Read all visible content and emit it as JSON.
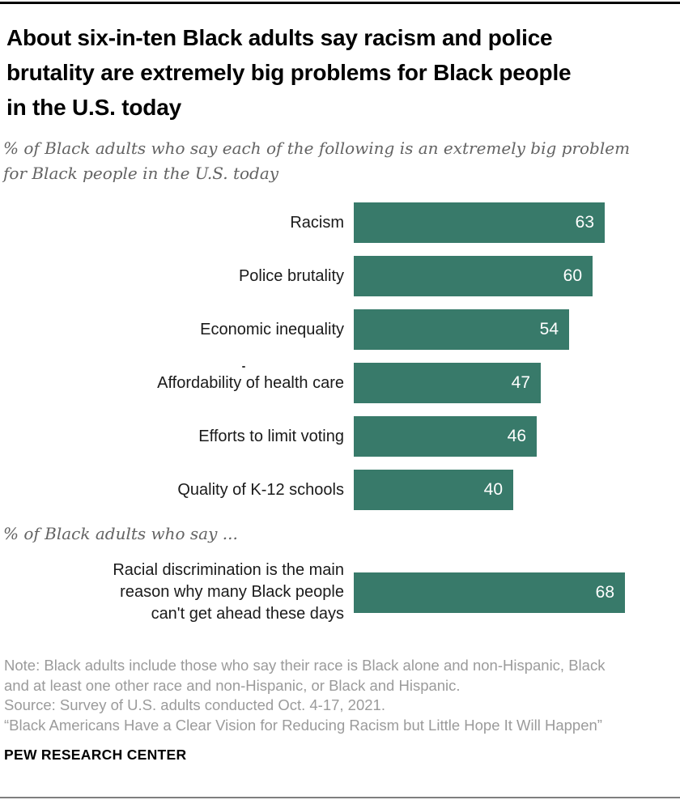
{
  "accent_color": "#387a6a",
  "header": {
    "title": "About six-in-ten Black adults say racism and police\nbrutality are extremely big problems for Black people\nin the U.S. today",
    "subtitle": "% of Black adults who say each of the following is an extremely big problem\nfor Black people in the U.S. today"
  },
  "section2": {
    "label": "% of Black adults who say ..."
  },
  "chart_data": [
    {
      "type": "bar",
      "orientation": "horizontal",
      "title": "% of Black adults who say each of the following is an extremely big problem for Black people in the U.S. today",
      "categories": [
        "Racism",
        "Police brutality",
        "Economic inequality",
        "Affordability of health care",
        "Efforts to limit voting",
        "Quality of K-12 schools"
      ],
      "values": [
        63,
        60,
        54,
        47,
        46,
        40
      ],
      "xlim": [
        0,
        100
      ],
      "grid": false,
      "legend": false,
      "bar_color": "#387a6a",
      "value_label_color": "#ffffff"
    },
    {
      "type": "bar",
      "orientation": "horizontal",
      "title": "% of Black adults who say ...",
      "categories": [
        "Racial discrimination is the main\nreason why many Black people\ncan't get ahead these days"
      ],
      "values": [
        68
      ],
      "xlim": [
        0,
        100
      ],
      "grid": false,
      "legend": false,
      "bar_color": "#387a6a",
      "value_label_color": "#ffffff"
    }
  ],
  "footer": {
    "note": "Note: Black adults include those who say their race is Black alone and non-Hispanic, Black\nand at least one other race and non-Hispanic, or Black and Hispanic.",
    "source": "Source: Survey of U.S. adults conducted Oct. 4-17, 2021.",
    "report": "“Black Americans Have a Clear Vision for Reducing Racism but Little Hope It Will Happen”",
    "brand": "PEW RESEARCH CENTER"
  }
}
